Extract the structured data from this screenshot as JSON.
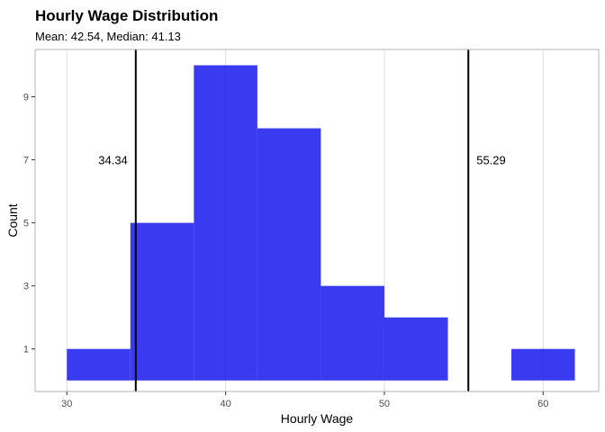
{
  "chart_data": {
    "type": "bar",
    "title": "Hourly Wage Distribution",
    "subtitle": "Mean: 42.54, Median: 41.13",
    "xlabel": "Hourly Wage",
    "ylabel": "Count",
    "xlim": [
      28,
      63.5
    ],
    "ylim": [
      -0.35,
      10.5
    ],
    "x_ticks": [
      30,
      40,
      50,
      60
    ],
    "y_ticks": [
      1,
      3,
      5,
      7,
      9
    ],
    "bins": [
      {
        "start": 30,
        "end": 34,
        "count": 1
      },
      {
        "start": 34,
        "end": 38,
        "count": 5
      },
      {
        "start": 38,
        "end": 42,
        "count": 10
      },
      {
        "start": 42,
        "end": 46,
        "count": 8
      },
      {
        "start": 46,
        "end": 50,
        "count": 3
      },
      {
        "start": 50,
        "end": 54,
        "count": 2
      },
      {
        "start": 54,
        "end": 58,
        "count": 0
      },
      {
        "start": 58,
        "end": 62,
        "count": 1
      }
    ],
    "bar_color": "#1f1fee",
    "vlines": [
      {
        "x": 34.34,
        "label": "34.34",
        "label_y": 7,
        "label_side": "left"
      },
      {
        "x": 55.29,
        "label": "55.29",
        "label_y": 7,
        "label_side": "right"
      }
    ],
    "grid": true,
    "legend": "none"
  }
}
